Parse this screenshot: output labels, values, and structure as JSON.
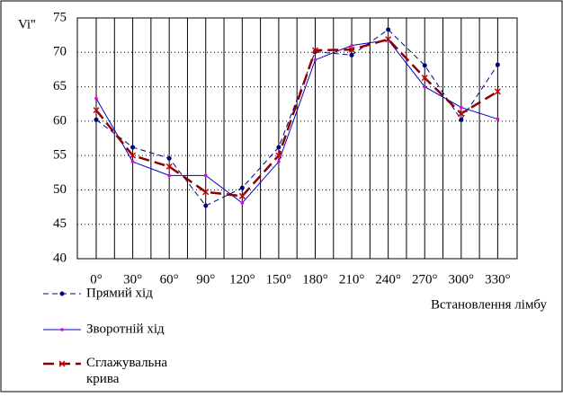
{
  "chart_data": {
    "type": "line",
    "y_label": "Vi''",
    "x_label": "Встановлення лімбу",
    "categories": [
      "0°",
      "30°",
      "60°",
      "90°",
      "120°",
      "150°",
      "180°",
      "210°",
      "240°",
      "270°",
      "300°",
      "330°"
    ],
    "ylim": [
      40,
      75
    ],
    "yticks": [
      40,
      45,
      50,
      55,
      60,
      65,
      70,
      75
    ],
    "series": [
      {
        "name": "Прямий хід",
        "color": "#000080",
        "dash": "6,4",
        "marker": "circle",
        "values": [
          60.2,
          56.2,
          54.6,
          47.7,
          50.3,
          56.2,
          70.1,
          69.6,
          73.3,
          68.1,
          60.2,
          68.2
        ]
      },
      {
        "name": "Зворотній хід",
        "color": "#0000cc",
        "dash": "none",
        "marker": "dot",
        "values": [
          63.3,
          54.1,
          52.1,
          52.1,
          48.1,
          54.1,
          68.9,
          71.0,
          71.8,
          65.0,
          62.0,
          60.3
        ]
      },
      {
        "name": "Сглажувальна крива",
        "color": "#8b0000",
        "dash": "12,6",
        "marker": "x",
        "values": [
          61.6,
          55.0,
          53.4,
          49.7,
          49.1,
          55.0,
          70.3,
          70.4,
          71.9,
          66.3,
          61.1,
          64.3
        ]
      }
    ]
  }
}
